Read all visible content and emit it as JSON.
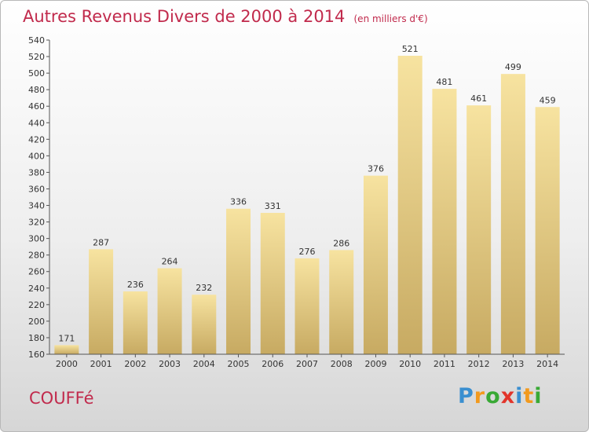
{
  "chart_data": {
    "type": "bar",
    "title": "Autres Revenus Divers de 2000 à 2014",
    "subtitle": "(en milliers d'€)",
    "categories": [
      "2000",
      "2001",
      "2002",
      "2003",
      "2004",
      "2005",
      "2006",
      "2007",
      "2008",
      "2009",
      "2010",
      "2011",
      "2012",
      "2013",
      "2014"
    ],
    "values": [
      171,
      287,
      236,
      264,
      232,
      336,
      331,
      276,
      286,
      376,
      521,
      481,
      461,
      499,
      459
    ],
    "ylim": [
      160,
      540
    ],
    "ytick_step": 20,
    "grid": false,
    "bar_color_light": "#f7e3a0",
    "bar_color_dark": "#c7aa62"
  },
  "footer": {
    "commune": "COUFFé",
    "logo_letters": [
      "P",
      "r",
      "o",
      "x",
      "i",
      "t",
      "i"
    ],
    "logo_colors": [
      "#3a8fd0",
      "#f29a1e",
      "#39a935",
      "#e2352b",
      "#3a8fd0",
      "#f29a1e",
      "#39a935"
    ]
  }
}
